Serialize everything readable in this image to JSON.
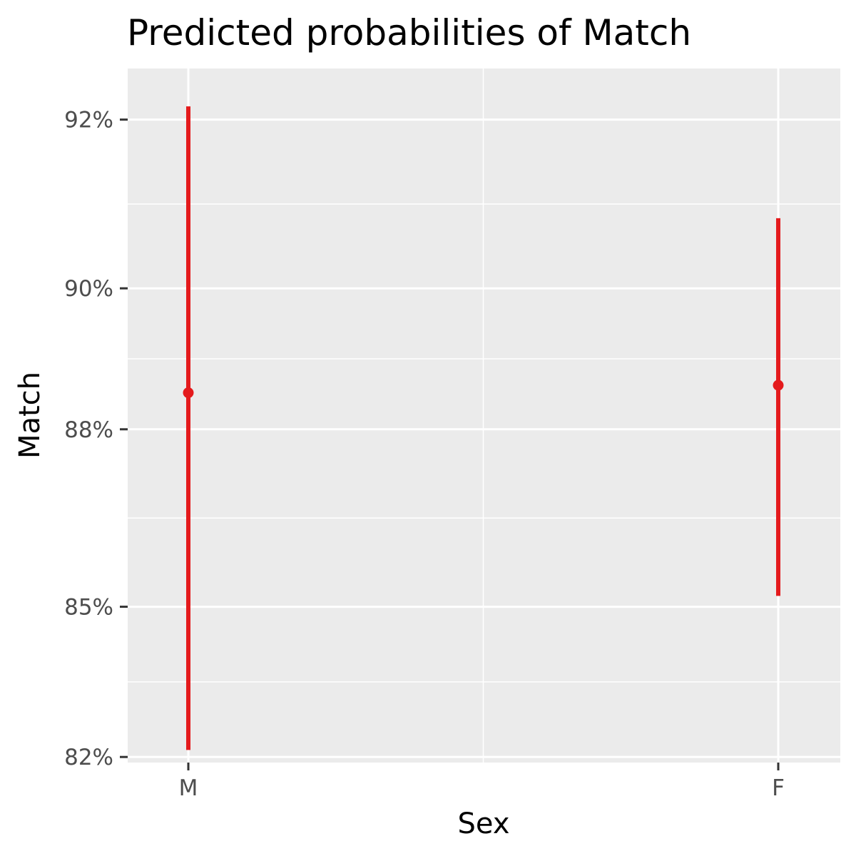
{
  "chart_data": {
    "type": "scatter",
    "title": "Predicted probabilities of Match",
    "xlabel": "Sex",
    "ylabel": "Match",
    "categories": [
      "M",
      "F"
    ],
    "series": [
      {
        "values": [
          0.8855,
          0.8866
        ],
        "lower": [
          0.8215,
          0.852
        ],
        "upper": [
          0.9214,
          0.9088
        ]
      }
    ],
    "yticks": [
      0.82,
      0.85,
      0.88,
      0.9,
      0.92
    ],
    "ytick_labels": [
      "82%",
      "85%",
      "88%",
      "90%",
      "92%"
    ],
    "ylim": [
      0.8188,
      0.9253
    ],
    "grid": true,
    "legend": "none",
    "colors": {
      "series": "#e41a1c",
      "panel": "#ebebeb",
      "grid": "#ffffff",
      "tick_text": "#4d4d4d",
      "tick_mark": "#333333"
    }
  }
}
